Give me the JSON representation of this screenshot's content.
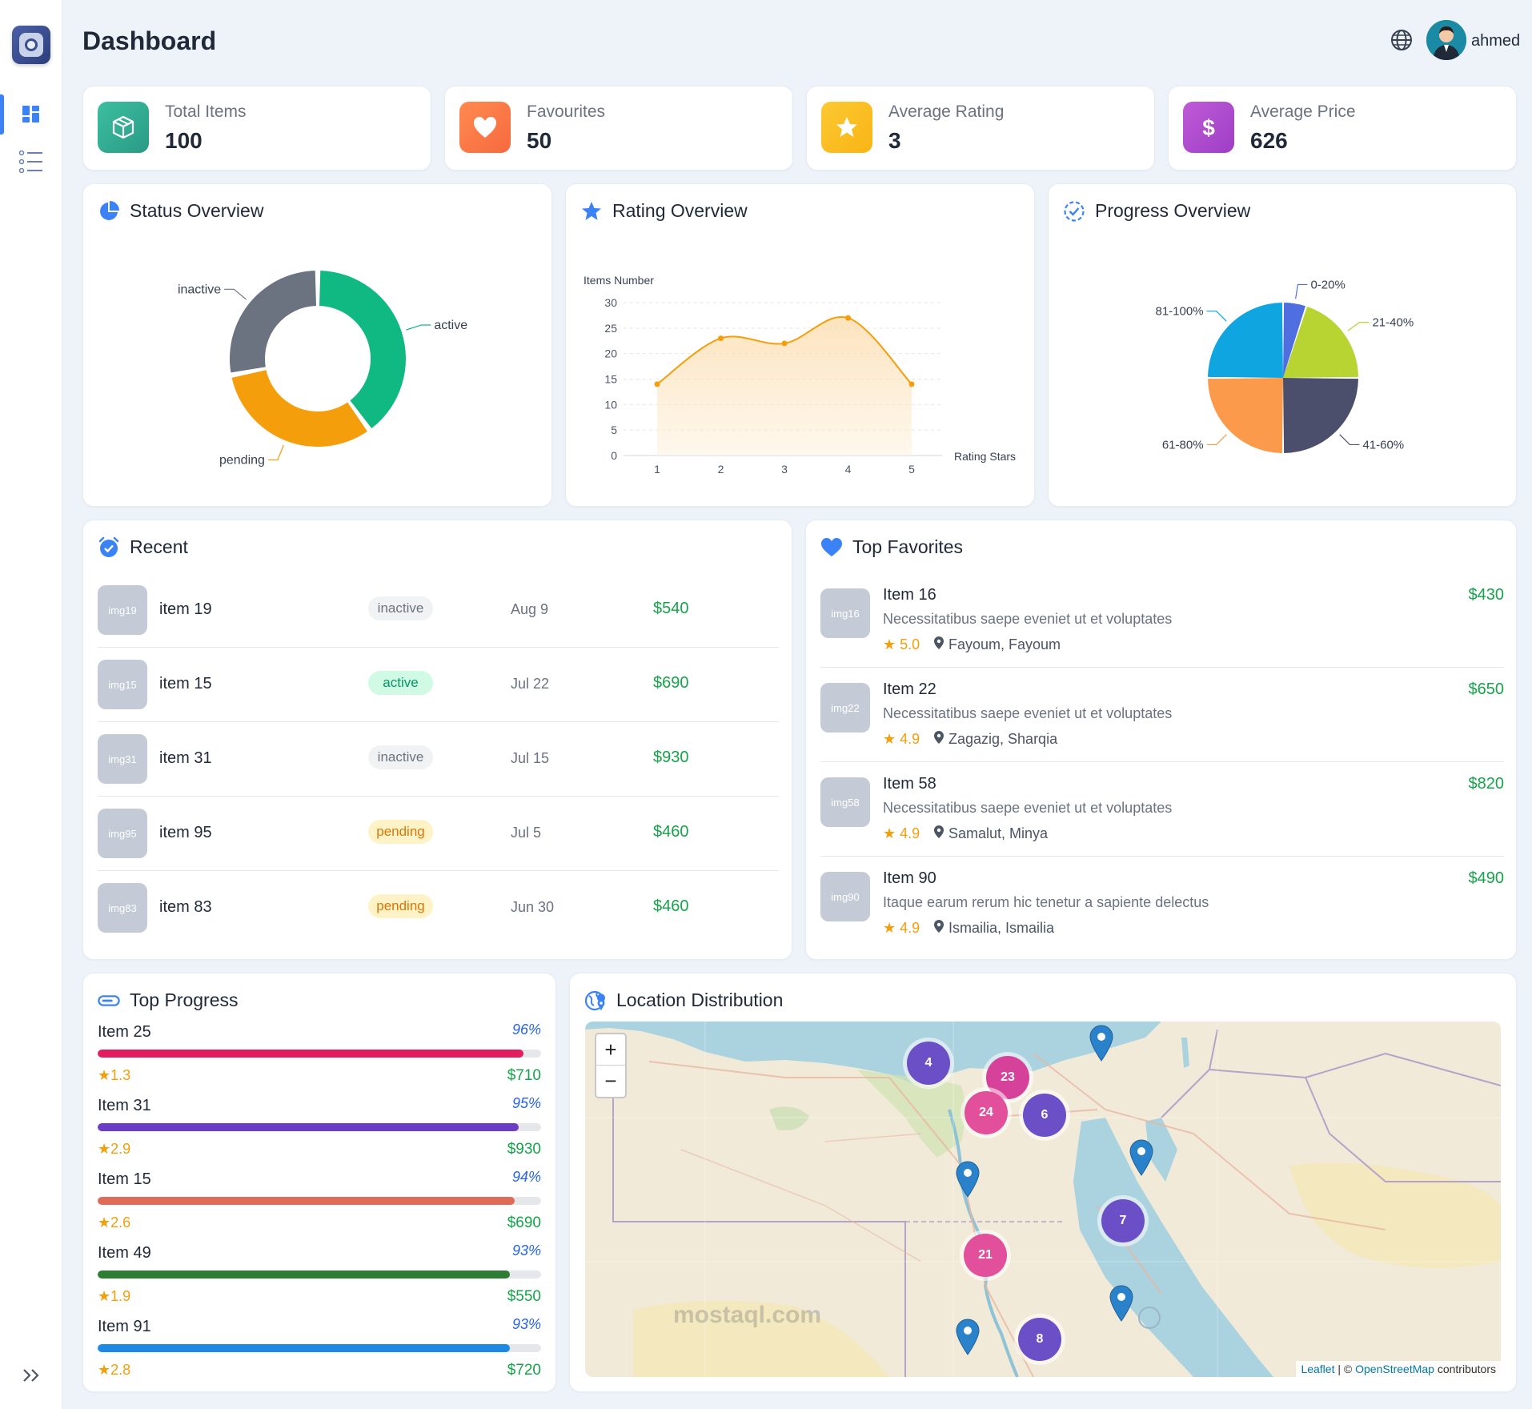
{
  "header": {
    "title": "Dashboard",
    "username": "ahmed"
  },
  "stats": [
    {
      "label": "Total Items",
      "value": "100",
      "color": "#2fae92"
    },
    {
      "label": "Favourites",
      "value": "50",
      "color": "#fb7a45"
    },
    {
      "label": "Average Rating",
      "value": "3",
      "color": "#fbbf24"
    },
    {
      "label": "Average Price",
      "value": "626",
      "color": "#b14fd1"
    }
  ],
  "status_overview": {
    "title": "Status Overview",
    "chart_data": {
      "type": "pie",
      "labels": [
        "active",
        "pending",
        "inactive"
      ],
      "values": [
        40,
        32,
        28
      ],
      "colors": [
        "#10b981",
        "#f59e0b",
        "#6b7280"
      ]
    }
  },
  "rating_overview": {
    "title": "Rating Overview",
    "chart_data": {
      "type": "area",
      "x": [
        1,
        2,
        3,
        4,
        5
      ],
      "values": [
        14,
        23,
        22,
        27,
        14
      ],
      "xlabel": "Rating Stars",
      "ylabel": "Items Number",
      "ylim": [
        0,
        30
      ],
      "yticks": [
        0,
        5,
        10,
        15,
        20,
        25,
        30
      ],
      "color": "#f59e0b"
    }
  },
  "progress_overview": {
    "title": "Progress Overview",
    "chart_data": {
      "type": "pie",
      "labels": [
        "0-20%",
        "21-40%",
        "41-60%",
        "61-80%",
        "81-100%"
      ],
      "values": [
        5,
        20,
        25,
        25,
        25
      ],
      "colors": [
        "#4f6fe0",
        "#b8d432",
        "#4b4f6b",
        "#fa9a4a",
        "#0ea5e0"
      ]
    }
  },
  "recent": {
    "title": "Recent",
    "rows": [
      {
        "img": "img19",
        "name": "item 19",
        "status": "inactive",
        "date": "Aug 9",
        "price": "$540"
      },
      {
        "img": "img15",
        "name": "item 15",
        "status": "active",
        "date": "Jul 22",
        "price": "$690"
      },
      {
        "img": "img31",
        "name": "item 31",
        "status": "inactive",
        "date": "Jul 15",
        "price": "$930"
      },
      {
        "img": "img95",
        "name": "item 95",
        "status": "pending",
        "date": "Jul 5",
        "price": "$460"
      },
      {
        "img": "img83",
        "name": "item 83",
        "status": "pending",
        "date": "Jun 30",
        "price": "$460"
      }
    ]
  },
  "favorites": {
    "title": "Top Favorites",
    "rows": [
      {
        "img": "img16",
        "name": "Item 16",
        "desc": "Necessitatibus saepe eveniet ut et voluptates",
        "rating": "5.0",
        "location": "Fayoum, Fayoum",
        "price": "$430"
      },
      {
        "img": "img22",
        "name": "Item 22",
        "desc": "Necessitatibus saepe eveniet ut et voluptates",
        "rating": "4.9",
        "location": "Zagazig, Sharqia",
        "price": "$650"
      },
      {
        "img": "img58",
        "name": "Item 58",
        "desc": "Necessitatibus saepe eveniet ut et voluptates",
        "rating": "4.9",
        "location": "Samalut, Minya",
        "price": "$820"
      },
      {
        "img": "img90",
        "name": "Item 90",
        "desc": "Itaque earum rerum hic tenetur a sapiente delectus",
        "rating": "4.9",
        "location": "Ismailia, Ismailia",
        "price": "$490"
      }
    ]
  },
  "top_progress": {
    "title": "Top Progress",
    "items": [
      {
        "name": "Item 25",
        "pct": "96%",
        "fill": 0.96,
        "rating": "1.3",
        "price": "$710",
        "color": "#e11d5f"
      },
      {
        "name": "Item 31",
        "pct": "95%",
        "fill": 0.95,
        "rating": "2.9",
        "price": "$930",
        "color": "#6d3cc4"
      },
      {
        "name": "Item 15",
        "pct": "94%",
        "fill": 0.94,
        "rating": "2.6",
        "price": "$690",
        "color": "#e06a58"
      },
      {
        "name": "Item 49",
        "pct": "93%",
        "fill": 0.93,
        "rating": "1.9",
        "price": "$550",
        "color": "#2e7d32"
      },
      {
        "name": "Item 91",
        "pct": "93%",
        "fill": 0.93,
        "rating": "2.8",
        "price": "$720",
        "color": "#1e88e5"
      }
    ]
  },
  "location": {
    "title": "Location Distribution",
    "zoom_in": "+",
    "zoom_out": "−",
    "clusters": [
      "4",
      "23",
      "24",
      "6",
      "7",
      "21",
      "8"
    ],
    "attribution": {
      "leaflet": "Leaflet",
      "sep": " | © ",
      "osm": "OpenStreetMap",
      "rest": " contributors"
    },
    "watermark": "mostaql.com"
  }
}
